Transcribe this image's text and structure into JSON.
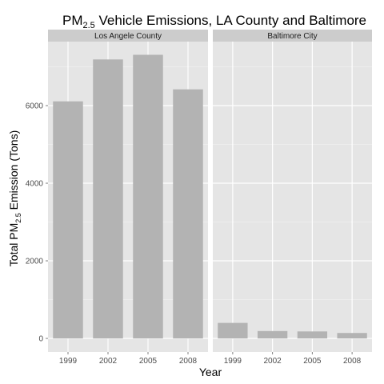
{
  "chart_data": {
    "type": "bar",
    "title": {
      "prefix": "PM",
      "subscript": "2.5",
      "suffix": " Vehicle Emissions, LA County and Baltimore"
    },
    "xlabel": "Year",
    "ylabel": {
      "prefix": "Total PM",
      "subscript": "2.5",
      "suffix": " Emission (Tons)"
    },
    "categories": [
      "1999",
      "2002",
      "2005",
      "2008"
    ],
    "yticks": [
      0,
      2000,
      4000,
      6000
    ],
    "ylim": [
      -350,
      7650
    ],
    "grid": true,
    "facets": [
      {
        "name": "Los Angele County",
        "values": [
          6110,
          7190,
          7310,
          6420
        ]
      },
      {
        "name": "Baltimore City",
        "values": [
          400,
          190,
          180,
          140
        ]
      }
    ],
    "colors": {
      "bar": "#b3b3b3",
      "panel": "#e5e5e5",
      "strip": "#cccccc",
      "grid": "#ffffff",
      "grid_minor": "#f2f2f2"
    }
  }
}
